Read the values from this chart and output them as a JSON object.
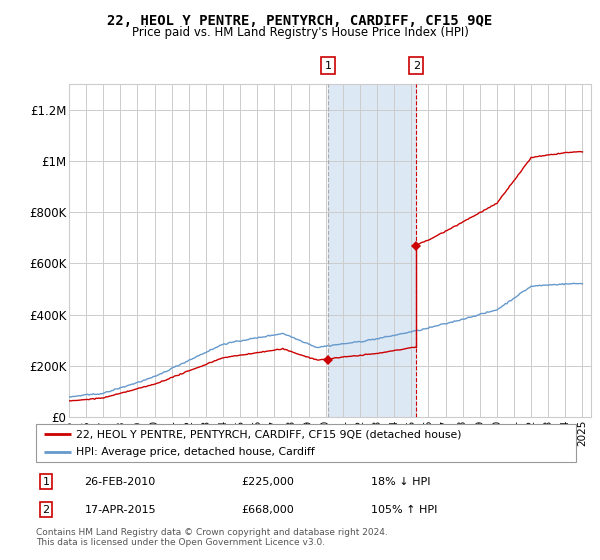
{
  "title": "22, HEOL Y PENTRE, PENTYRCH, CARDIFF, CF15 9QE",
  "subtitle": "Price paid vs. HM Land Registry's House Price Index (HPI)",
  "legend_label_red": "22, HEOL Y PENTRE, PENTYRCH, CARDIFF, CF15 9QE (detached house)",
  "legend_label_blue": "HPI: Average price, detached house, Cardiff",
  "annotation1_date": "26-FEB-2010",
  "annotation1_price": "£225,000",
  "annotation1_pct": "18% ↓ HPI",
  "annotation1_year": 2010.15,
  "annotation1_price_val": 225000,
  "annotation2_date": "17-APR-2015",
  "annotation2_price": "£668,000",
  "annotation2_pct": "105% ↑ HPI",
  "annotation2_year": 2015.29,
  "annotation2_price_val": 668000,
  "footer": "Contains HM Land Registry data © Crown copyright and database right 2024.\nThis data is licensed under the Open Government Licence v3.0.",
  "xlim": [
    1995,
    2025.5
  ],
  "ylim": [
    0,
    1300000
  ],
  "yticks": [
    0,
    200000,
    400000,
    600000,
    800000,
    1000000,
    1200000
  ],
  "ytick_labels": [
    "£0",
    "£200K",
    "£400K",
    "£600K",
    "£800K",
    "£1M",
    "£1.2M"
  ],
  "color_red": "#cc0000",
  "color_blue": "#6699cc",
  "color_shading": "#dde8f5",
  "bg_color": "#ffffff",
  "grid_color": "#cccccc"
}
